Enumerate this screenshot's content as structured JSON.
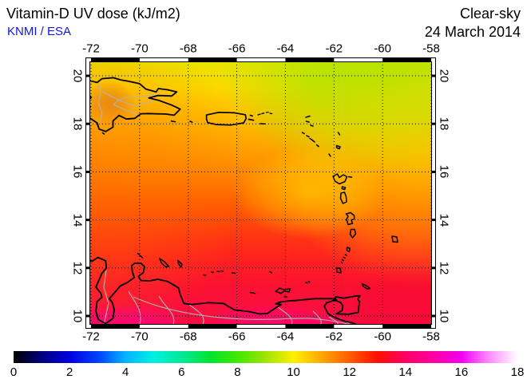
{
  "header": {
    "title": "Vitamin-D UV dose (kJ/m2)",
    "source": "KNMI / ESA",
    "condition": "Clear-sky",
    "date": "24 March 2014"
  },
  "map": {
    "lon_ticks": [
      "-72",
      "-70",
      "-68",
      "-66",
      "-64",
      "-62",
      "-60",
      "-58"
    ],
    "lat_ticks": [
      "20",
      "18",
      "16",
      "14",
      "12",
      "10"
    ]
  },
  "colorbar": {
    "min": 0,
    "max": 18,
    "tick_labels": [
      "0",
      "2",
      "4",
      "6",
      "8",
      "10",
      "12",
      "14",
      "16",
      "18"
    ],
    "stops": [
      {
        "v": 0,
        "c": "#000000"
      },
      {
        "v": 1,
        "c": "#000080"
      },
      {
        "v": 2,
        "c": "#0000e0"
      },
      {
        "v": 3,
        "c": "#0040ff"
      },
      {
        "v": 4,
        "c": "#00b4ff"
      },
      {
        "v": 5,
        "c": "#00f0e0"
      },
      {
        "v": 6,
        "c": "#00e896"
      },
      {
        "v": 7,
        "c": "#00e430"
      },
      {
        "v": 8,
        "c": "#40e800"
      },
      {
        "v": 9,
        "c": "#a0e400"
      },
      {
        "v": 10,
        "c": "#ffef00"
      },
      {
        "v": 11,
        "c": "#ffa800"
      },
      {
        "v": 12,
        "c": "#ff5c00"
      },
      {
        "v": 13,
        "c": "#ff0f00"
      },
      {
        "v": 14,
        "c": "#ff0064"
      },
      {
        "v": 15,
        "c": "#ff00a0"
      },
      {
        "v": 16,
        "c": "#f000f0"
      },
      {
        "v": 17,
        "c": "#ff8cff"
      },
      {
        "v": 18,
        "c": "#ffffff"
      }
    ]
  }
}
